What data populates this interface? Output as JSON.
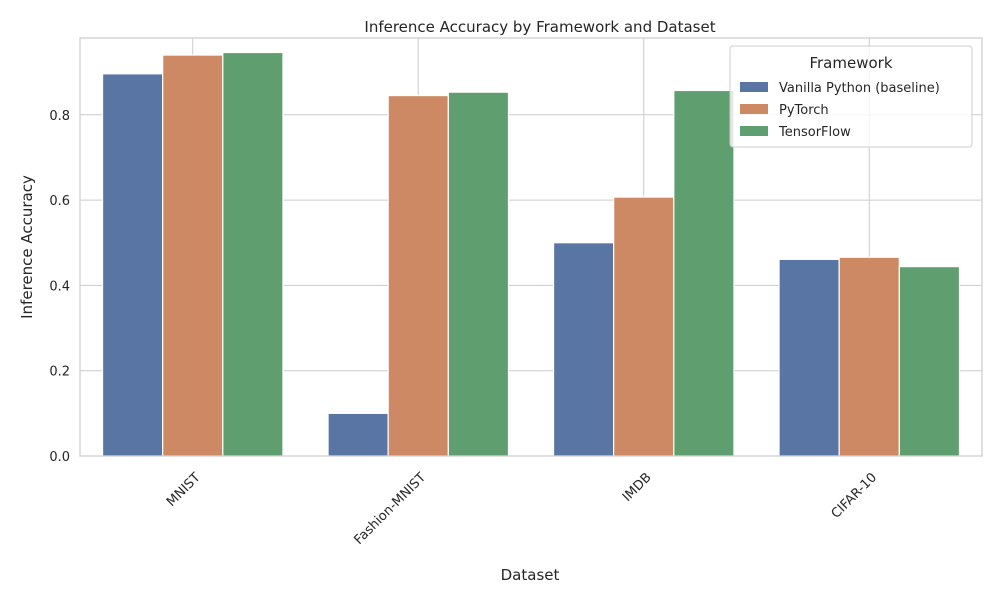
{
  "chart_data": {
    "type": "bar",
    "title": "Inference Accuracy by Framework and Dataset",
    "xlabel": "Dataset",
    "ylabel": "Inference Accuracy",
    "categories": [
      "MNIST",
      "Fashion-MNIST",
      "IMDB",
      "CIFAR-10"
    ],
    "series": [
      {
        "name": "Vanilla Python (baseline)",
        "color": "#5875a4",
        "values": [
          0.896,
          0.1,
          0.5,
          0.461
        ]
      },
      {
        "name": "PyTorch",
        "color": "#cc8963",
        "values": [
          0.94,
          0.845,
          0.607,
          0.466
        ]
      },
      {
        "name": "TensorFlow",
        "color": "#5f9e6e",
        "values": [
          0.946,
          0.853,
          0.857,
          0.444
        ]
      }
    ],
    "ylim": [
      0,
      0.98
    ],
    "yticks": [
      0.0,
      0.2,
      0.4,
      0.6,
      0.8
    ],
    "ytick_labels": [
      "0.0",
      "0.2",
      "0.4",
      "0.6",
      "0.8"
    ],
    "grid": true,
    "legend": {
      "title": "Framework",
      "position": "top-right"
    }
  }
}
